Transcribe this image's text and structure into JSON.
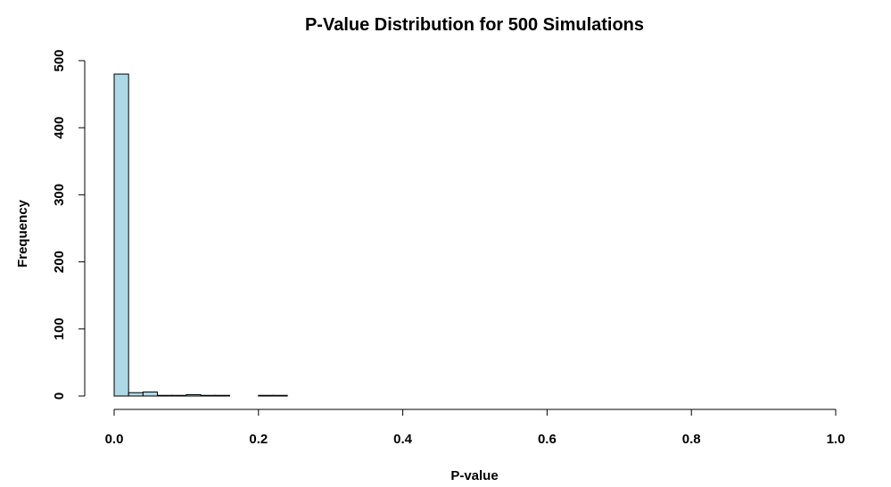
{
  "chart_data": {
    "type": "bar",
    "title": "P-Value Distribution for 500 Simulations",
    "xlabel": "P-value",
    "ylabel": "Frequency",
    "bin_width": 0.02,
    "bins": [
      {
        "start": 0.0,
        "end": 0.02,
        "count": 480
      },
      {
        "start": 0.02,
        "end": 0.04,
        "count": 5
      },
      {
        "start": 0.04,
        "end": 0.06,
        "count": 6
      },
      {
        "start": 0.06,
        "end": 0.08,
        "count": 1
      },
      {
        "start": 0.08,
        "end": 0.1,
        "count": 1
      },
      {
        "start": 0.1,
        "end": 0.12,
        "count": 2
      },
      {
        "start": 0.12,
        "end": 0.14,
        "count": 1
      },
      {
        "start": 0.14,
        "end": 0.16,
        "count": 1
      },
      {
        "start": 0.16,
        "end": 0.18,
        "count": 0
      },
      {
        "start": 0.18,
        "end": 0.2,
        "count": 0
      },
      {
        "start": 0.2,
        "end": 0.22,
        "count": 1
      },
      {
        "start": 0.22,
        "end": 0.24,
        "count": 1
      }
    ],
    "xlim": [
      0,
      1
    ],
    "ylim": [
      0,
      500
    ],
    "x_ticks": [
      "0.0",
      "0.2",
      "0.4",
      "0.6",
      "0.8",
      "1.0"
    ],
    "y_ticks": [
      "0",
      "100",
      "200",
      "300",
      "400",
      "500"
    ],
    "bar_color": "#add8e6",
    "grid": false,
    "legend": "none"
  }
}
